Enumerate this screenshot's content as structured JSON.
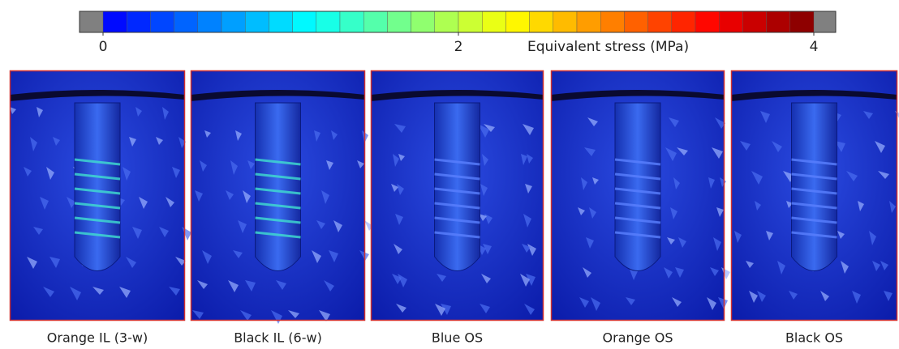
{
  "colorbar": {
    "label": "Equivalent stress (MPa)",
    "lim": [
      0,
      4
    ],
    "ticks": [
      0,
      2,
      4
    ]
  },
  "panels": [
    {
      "label": "Orange IL (3-w)"
    },
    {
      "label": "Black IL (6-w)"
    },
    {
      "label": "Blue OS"
    },
    {
      "label": "Orange OS"
    },
    {
      "label": "Black OS"
    }
  ]
}
